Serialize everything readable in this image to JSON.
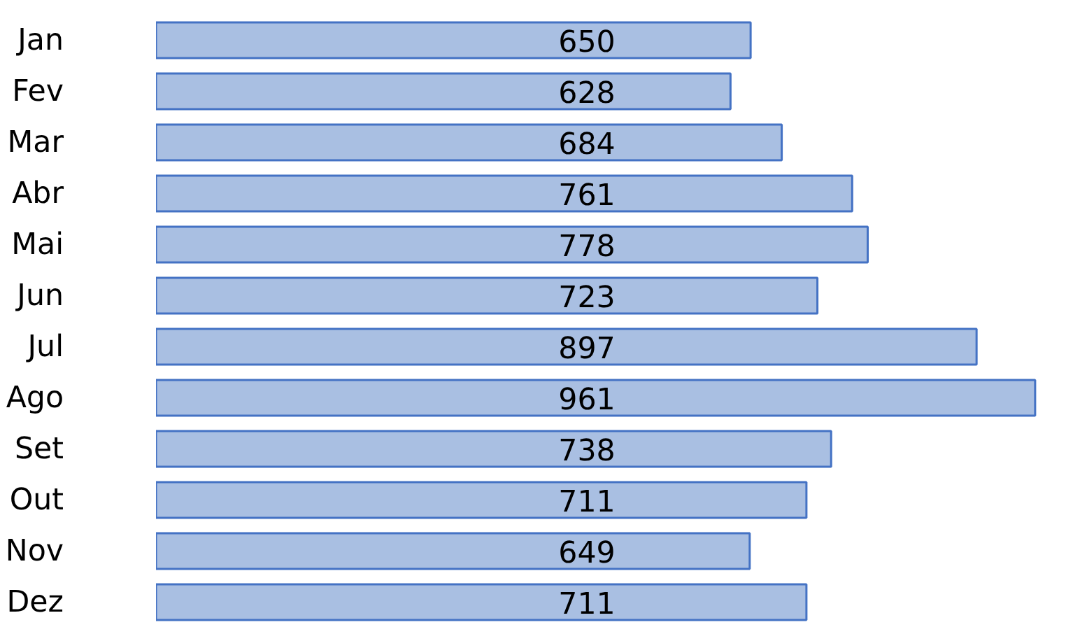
{
  "chart_data": {
    "type": "bar",
    "orientation": "horizontal",
    "categories": [
      "Jan",
      "Fev",
      "Mar",
      "Abr",
      "Mai",
      "Jun",
      "Jul",
      "Ago",
      "Set",
      "Out",
      "Nov",
      "Dez"
    ],
    "values": [
      650,
      628,
      684,
      761,
      778,
      723,
      897,
      961,
      738,
      711,
      649,
      711
    ],
    "color": "#a9bfe2",
    "data_labels": true
  }
}
